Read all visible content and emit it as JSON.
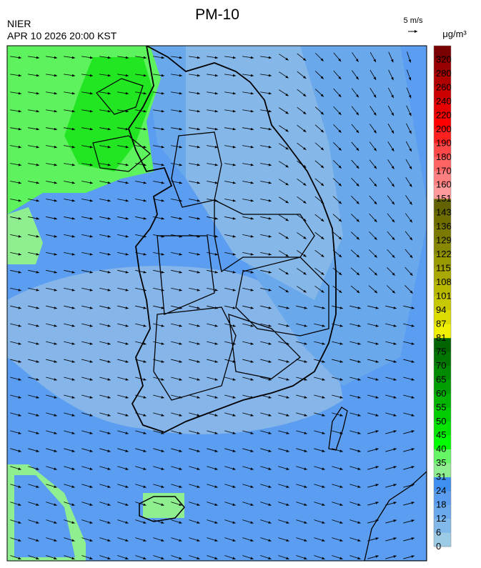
{
  "header": {
    "title": "PM-10",
    "agency": "NIER",
    "datetime": "APR 10 2026 20:00 KST",
    "wind_scale": "5 m/s",
    "unit": "μg/m³"
  },
  "legend": {
    "labels": [
      0,
      6,
      12,
      18,
      24,
      31,
      35,
      40,
      45,
      50,
      55,
      60,
      65,
      70,
      75,
      81,
      87,
      94,
      101,
      108,
      115,
      122,
      129,
      136,
      143,
      151,
      160,
      170,
      180,
      190,
      200,
      220,
      240,
      260,
      280,
      320
    ],
    "colors": [
      "#9ccbe6",
      "#80b9ea",
      "#6aa9ec",
      "#5a9dee",
      "#3f8ff0",
      "#8fee8f",
      "#66f566",
      "#00ff00",
      "#00e400",
      "#00cc00",
      "#00b400",
      "#009e00",
      "#008a00",
      "#007600",
      "#006400",
      "#f0f000",
      "#dcdc00",
      "#c8c800",
      "#b8b800",
      "#a8a800",
      "#989800",
      "#888800",
      "#7a7a00",
      "#6e6e00",
      "#626200",
      "#ff9a9a",
      "#ff8080",
      "#ff6464",
      "#ff4848",
      "#ff2020",
      "#ff0000",
      "#e60000",
      "#cc0000",
      "#b00000",
      "#960000",
      "#780000"
    ]
  }
}
